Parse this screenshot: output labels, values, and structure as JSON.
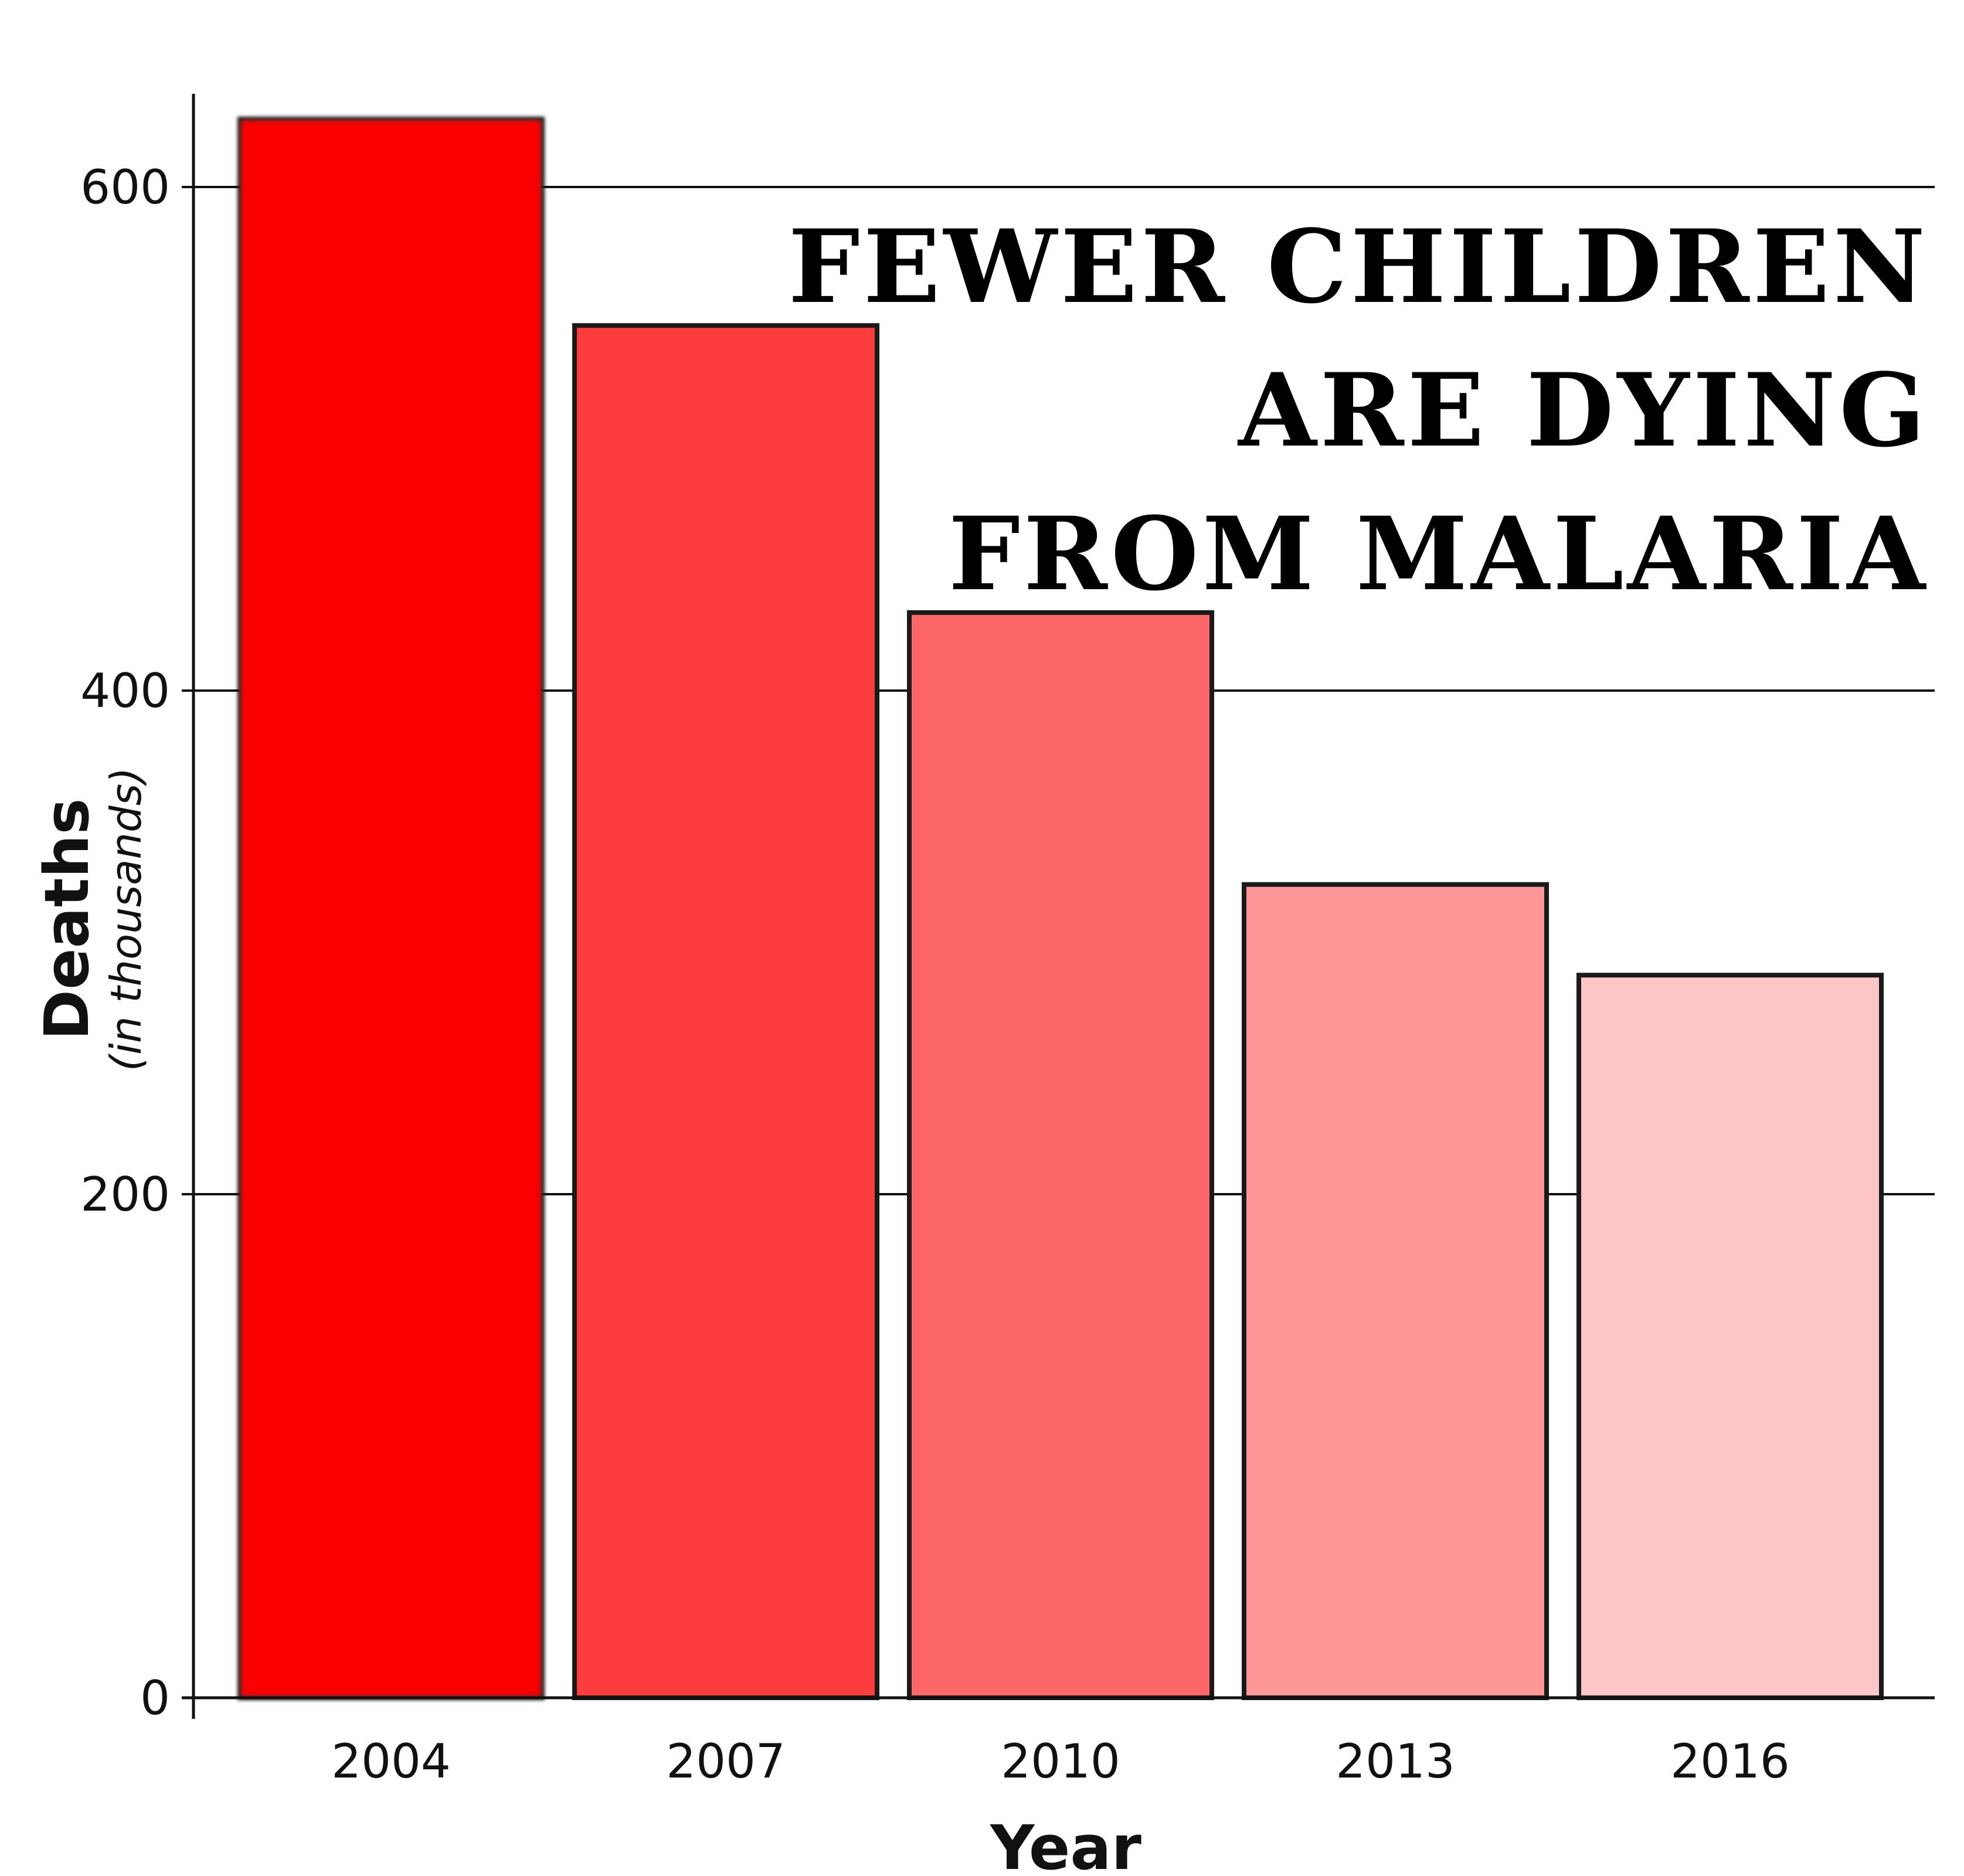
{
  "chart_data": {
    "type": "bar",
    "title_lines": [
      "FEWER CHILDREN",
      "ARE DYING",
      "FROM MALARIA"
    ],
    "xlabel": "Year",
    "ylabel": "Deaths",
    "ylabel_sub": "(in thousands)",
    "categories": [
      "2004",
      "2007",
      "2010",
      "2013",
      "2016"
    ],
    "values": [
      627,
      545,
      431,
      323,
      287
    ],
    "colors": [
      "#fb0606",
      "#fd3d3d",
      "#fe6767",
      "#fe9898",
      "#fec6c6"
    ],
    "ylim": [
      0,
      640
    ],
    "yticks": [
      0,
      200,
      400,
      600
    ],
    "ytick_labels": [
      "0",
      "200",
      "400",
      "600"
    ],
    "grid": true
  }
}
